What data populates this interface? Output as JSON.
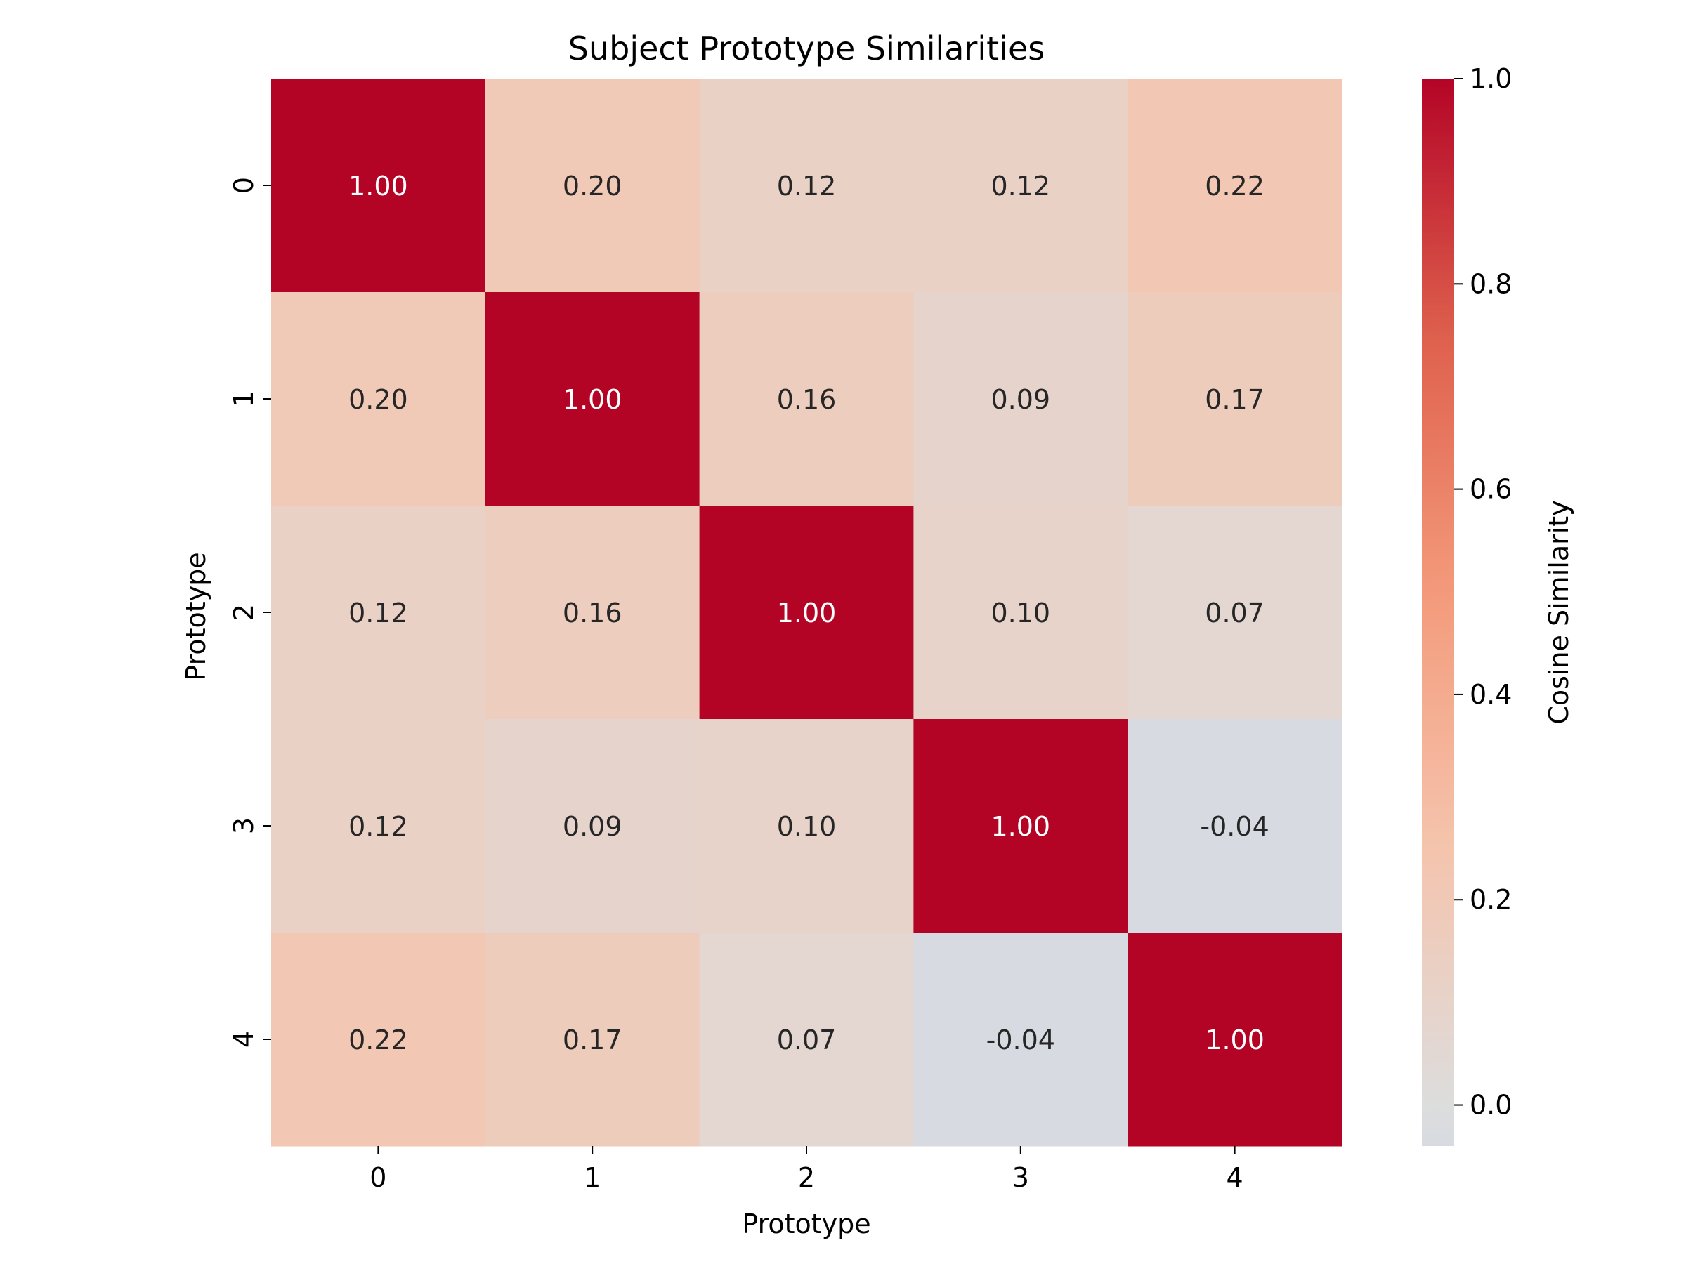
{
  "chart_data": {
    "type": "heatmap",
    "title": "Subject Prototype Similarities",
    "xlabel": "Prototype",
    "ylabel": "Prototype",
    "x_categories": [
      "0",
      "1",
      "2",
      "3",
      "4"
    ],
    "y_categories": [
      "0",
      "1",
      "2",
      "3",
      "4"
    ],
    "values": [
      [
        1.0,
        0.2,
        0.12,
        0.12,
        0.22
      ],
      [
        0.2,
        1.0,
        0.16,
        0.09,
        0.17
      ],
      [
        0.12,
        0.16,
        1.0,
        0.1,
        0.07
      ],
      [
        0.12,
        0.09,
        0.1,
        1.0,
        -0.04
      ],
      [
        0.22,
        0.17,
        0.07,
        -0.04,
        1.0
      ]
    ],
    "value_format": "2 decimals",
    "colormap": "coolwarm",
    "colorbar": {
      "label": "Cosine Similarity",
      "range": [
        -0.04,
        1.0
      ],
      "ticks": [
        "0.0",
        "0.2",
        "0.4",
        "0.6",
        "0.8",
        "1.0"
      ],
      "tick_values": [
        0.0,
        0.2,
        0.4,
        0.6,
        0.8,
        1.0
      ]
    },
    "grid": false
  }
}
